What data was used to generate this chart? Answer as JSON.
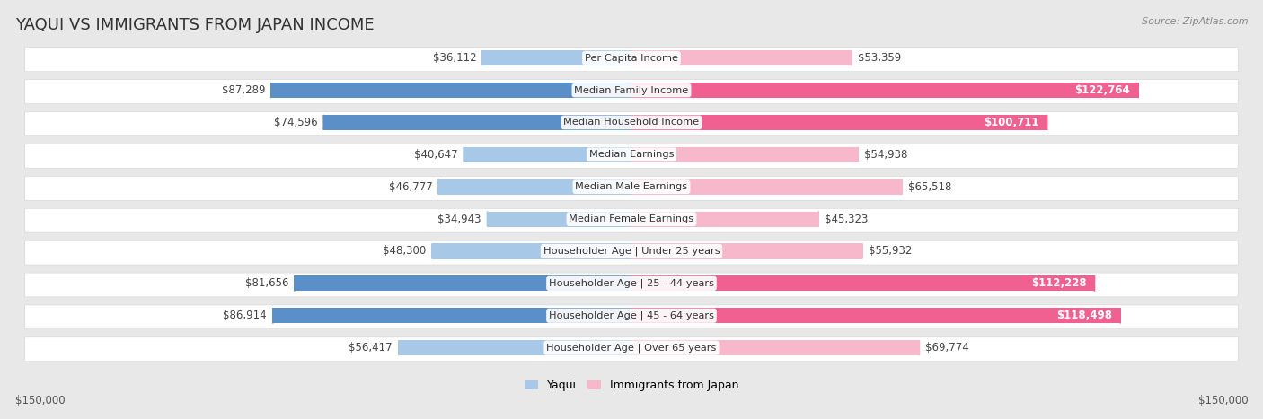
{
  "title": "YAQUI VS IMMIGRANTS FROM JAPAN INCOME",
  "source": "Source: ZipAtlas.com",
  "categories": [
    "Per Capita Income",
    "Median Family Income",
    "Median Household Income",
    "Median Earnings",
    "Median Male Earnings",
    "Median Female Earnings",
    "Householder Age | Under 25 years",
    "Householder Age | 25 - 44 years",
    "Householder Age | 45 - 64 years",
    "Householder Age | Over 65 years"
  ],
  "yaqui_values": [
    36112,
    87289,
    74596,
    40647,
    46777,
    34943,
    48300,
    81656,
    86914,
    56417
  ],
  "japan_values": [
    53359,
    122764,
    100711,
    54938,
    65518,
    45323,
    55932,
    112228,
    118498,
    69774
  ],
  "yaqui_labels": [
    "$36,112",
    "$87,289",
    "$74,596",
    "$40,647",
    "$46,777",
    "$34,943",
    "$48,300",
    "$81,656",
    "$86,914",
    "$56,417"
  ],
  "japan_labels": [
    "$53,359",
    "$122,764",
    "$100,711",
    "$54,938",
    "$65,518",
    "$45,323",
    "$55,932",
    "$112,228",
    "$118,498",
    "$69,774"
  ],
  "yaqui_color_light": "#a8c8e8",
  "yaqui_color_dark": "#5b8fc8",
  "japan_color_light": "#f8b8cc",
  "japan_color_dark": "#f06090",
  "yaqui_threshold": 60000,
  "japan_threshold": 80000,
  "max_value": 150000,
  "x_label_left": "$150,000",
  "x_label_right": "$150,000",
  "legend_yaqui": "Yaqui",
  "legend_japan": "Immigrants from Japan",
  "background_color": "#e8e8e8",
  "row_background": "#ffffff",
  "title_fontsize": 13,
  "label_fontsize": 8.5,
  "category_fontsize": 8.2
}
